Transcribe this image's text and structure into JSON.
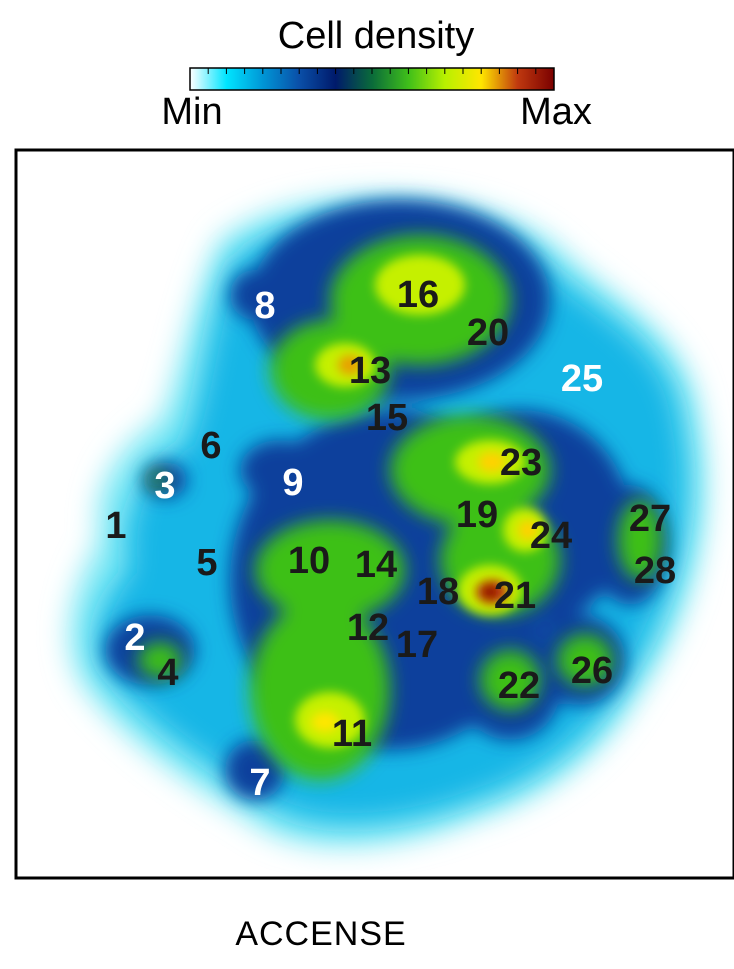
{
  "chart_data": {
    "type": "heatmap",
    "title": "Cell density",
    "colorbar": {
      "min_label": "Min",
      "max_label": "Max",
      "colors": [
        "#ffffff",
        "#00e5ff",
        "#0096d6",
        "#0a4fa8",
        "#001a6b",
        "#0a6b3a",
        "#3fbf1a",
        "#b8f000",
        "#ffe600",
        "#c0390f",
        "#7a0000"
      ]
    },
    "caption": "ACCENSE",
    "clusters": [
      {
        "id": "1",
        "color": "#1a1a1a"
      },
      {
        "id": "2",
        "color": "#ffffff"
      },
      {
        "id": "3",
        "color": "#ffffff"
      },
      {
        "id": "4",
        "color": "#1a1a1a"
      },
      {
        "id": "5",
        "color": "#1a1a1a"
      },
      {
        "id": "6",
        "color": "#1a1a1a"
      },
      {
        "id": "7",
        "color": "#ffffff"
      },
      {
        "id": "8",
        "color": "#ffffff"
      },
      {
        "id": "9",
        "color": "#ffffff"
      },
      {
        "id": "10",
        "color": "#1a1a1a"
      },
      {
        "id": "11",
        "color": "#1a1a1a"
      },
      {
        "id": "12",
        "color": "#1a1a1a"
      },
      {
        "id": "13",
        "color": "#1a1a1a"
      },
      {
        "id": "14",
        "color": "#1a1a1a"
      },
      {
        "id": "15",
        "color": "#1a1a1a"
      },
      {
        "id": "16",
        "color": "#1a1a1a"
      },
      {
        "id": "17",
        "color": "#1a1a1a"
      },
      {
        "id": "18",
        "color": "#1a1a1a"
      },
      {
        "id": "19",
        "color": "#1a1a1a"
      },
      {
        "id": "20",
        "color": "#1a1a1a"
      },
      {
        "id": "21",
        "color": "#1a1a1a"
      },
      {
        "id": "22",
        "color": "#1a1a1a"
      },
      {
        "id": "23",
        "color": "#1a1a1a"
      },
      {
        "id": "24",
        "color": "#1a1a1a"
      },
      {
        "id": "25",
        "color": "#ffffff"
      },
      {
        "id": "26",
        "color": "#1a1a1a"
      },
      {
        "id": "27",
        "color": "#1a1a1a"
      },
      {
        "id": "28",
        "color": "#1a1a1a"
      }
    ]
  }
}
